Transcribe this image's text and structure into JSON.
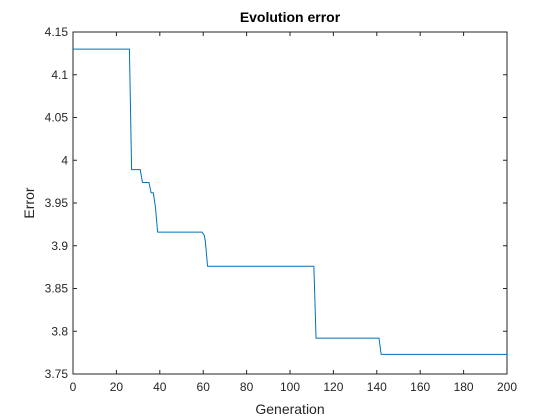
{
  "chart_data": {
    "type": "line",
    "title": "Evolution error",
    "xlabel": "Generation",
    "ylabel": "Error",
    "xlim": [
      0,
      200
    ],
    "ylim": [
      3.75,
      4.15
    ],
    "xticks": [
      0,
      20,
      40,
      60,
      80,
      100,
      120,
      140,
      160,
      180,
      200
    ],
    "yticks": [
      3.75,
      3.8,
      3.85,
      3.9,
      3.95,
      4,
      4.05,
      4.1,
      4.15
    ],
    "xtick_labels": [
      "0",
      "20",
      "40",
      "60",
      "80",
      "100",
      "120",
      "140",
      "160",
      "180",
      "200"
    ],
    "ytick_labels": [
      "3.75",
      "3.8",
      "3.85",
      "3.9",
      "3.95",
      "4",
      "4.05",
      "4.1",
      "4.15"
    ],
    "grid": false,
    "line_color": "#0072BD",
    "series": [
      {
        "x": [
          0,
          26,
          26.5,
          27,
          31,
          32,
          35,
          36,
          37,
          38,
          38.5,
          39,
          59.5,
          60.5,
          61,
          62,
          111,
          112,
          141,
          142,
          200
        ],
        "y": [
          4.13,
          4.13,
          4.06,
          3.989,
          3.989,
          3.974,
          3.974,
          3.962,
          3.962,
          3.945,
          3.93,
          3.916,
          3.916,
          3.912,
          3.905,
          3.876,
          3.876,
          3.792,
          3.792,
          3.773,
          3.773
        ]
      }
    ]
  }
}
